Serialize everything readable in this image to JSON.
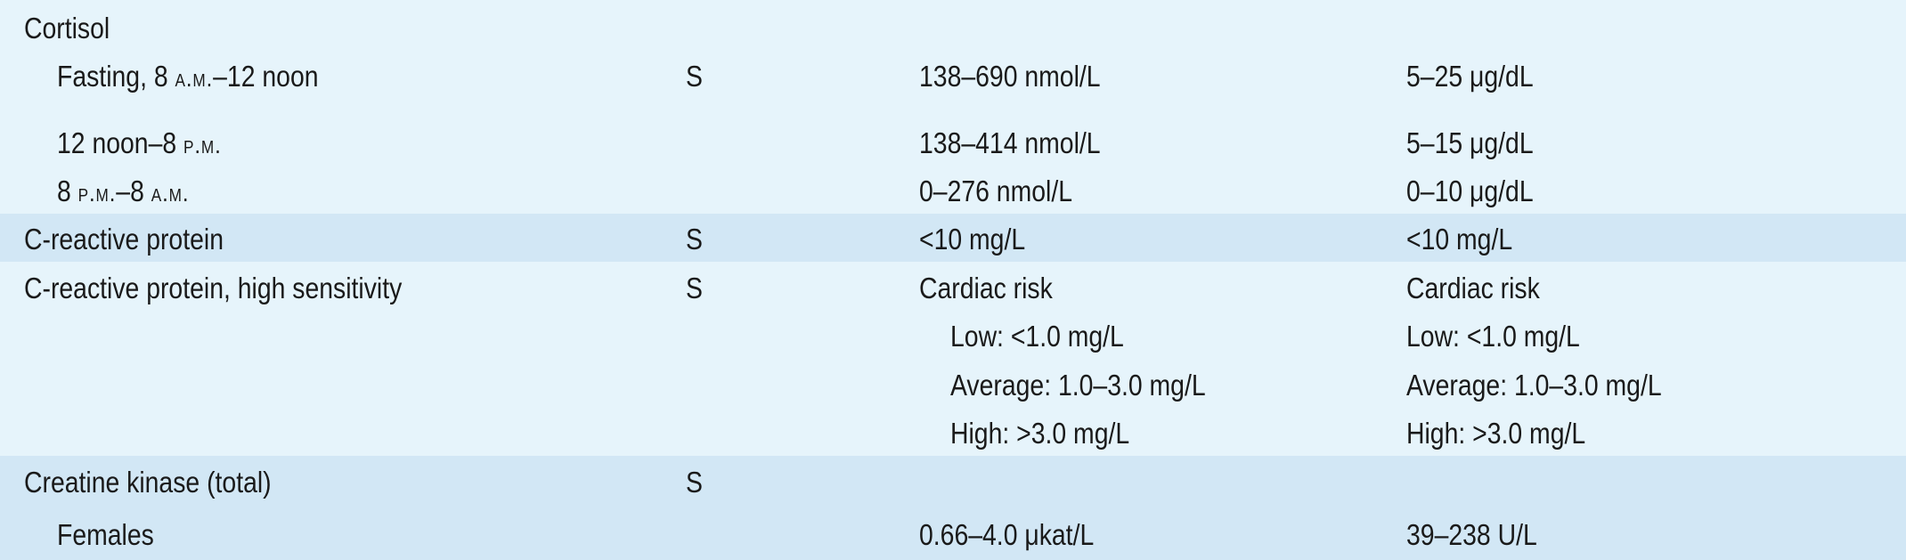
{
  "rows": {
    "cortisol": {
      "name": "Cortisol",
      "fasting_label": "Fasting, 8",
      "fasting_am": "A.M.",
      "fasting_rest": "–12 noon",
      "fasting_specimen": "S",
      "fasting_si": "138–690 nmol/L",
      "fasting_conv": "5–25 μg/dL",
      "noon_label": "12 noon–8",
      "noon_pm": "P.M.",
      "noon_si": "138–414 nmol/L",
      "noon_conv": "5–15 μg/dL",
      "night_8": "8",
      "night_pm": "P.M.",
      "night_mid": "–8",
      "night_am": "A.M.",
      "night_si": "0–276 nmol/L",
      "night_conv": "0–10 μg/dL"
    },
    "crp": {
      "name": "C-reactive protein",
      "specimen": "S",
      "si": "<10 mg/L",
      "conv": "<10 mg/L"
    },
    "hscrp": {
      "name": "C-reactive protein, high sensitivity",
      "specimen": "S",
      "si_heading": "Cardiac risk",
      "si_low": "Low: <1.0 mg/L",
      "si_avg": "Average: 1.0–3.0 mg/L",
      "si_high": "High: >3.0 mg/L",
      "conv_heading": "Cardiac risk",
      "conv_low": "Low: <1.0 mg/L",
      "conv_avg": "Average: 1.0–3.0 mg/L",
      "conv_high": "High: >3.0 mg/L"
    },
    "ck": {
      "name": "Creatine kinase (total)",
      "specimen": "S",
      "females_label": "Females",
      "females_si": "0.66–4.0 μkat/L",
      "females_conv": "39–238 U/L"
    }
  }
}
